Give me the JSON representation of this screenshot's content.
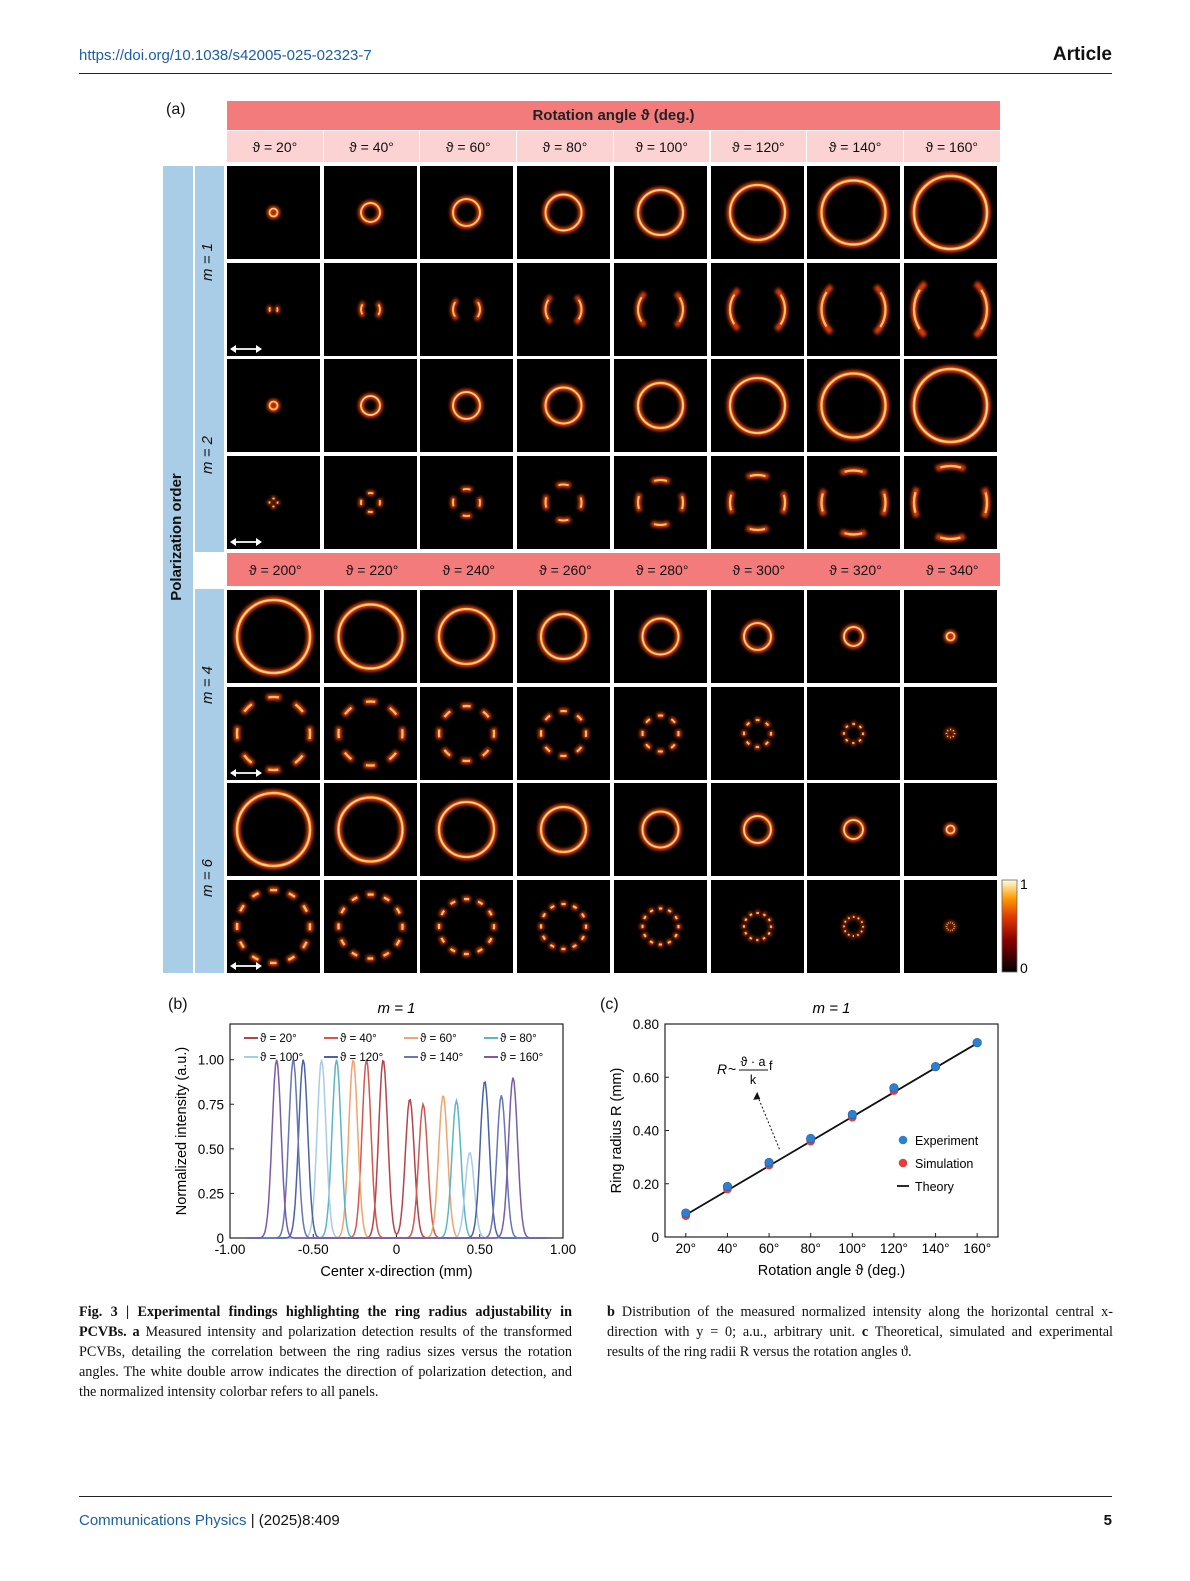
{
  "header": {
    "doi": "https://doi.org/10.1038/s42005-025-02323-7",
    "type": "Article"
  },
  "figure_a": {
    "label": "(a)",
    "banner": "Rotation angle ϑ (deg.)",
    "angles_top": [
      "ϑ = 20°",
      "ϑ = 40°",
      "ϑ = 60°",
      "ϑ = 80°",
      "ϑ = 100°",
      "ϑ = 120°",
      "ϑ = 140°",
      "ϑ = 160°"
    ],
    "angles_bottom": [
      "ϑ = 200°",
      "ϑ = 220°",
      "ϑ = 240°",
      "ϑ = 260°",
      "ϑ = 280°",
      "ϑ = 300°",
      "ϑ = 320°",
      "ϑ = 340°"
    ],
    "side_title": "Polarization order",
    "orders": [
      "m = 1",
      "m = 2",
      "m = 4",
      "m = 6"
    ],
    "order_values": [
      1,
      2,
      4,
      6
    ],
    "ring_sizes_top": [
      0.08,
      0.19,
      0.27,
      0.36,
      0.45,
      0.55,
      0.64,
      0.73
    ],
    "ring_sizes_bottom": [
      0.73,
      0.64,
      0.55,
      0.45,
      0.36,
      0.27,
      0.19,
      0.08
    ],
    "colorbar": {
      "max": "1",
      "min": "0"
    }
  },
  "figure_b": {
    "label": "(b)",
    "chart_data": {
      "type": "line",
      "title": "m = 1",
      "xlabel": "Center x-direction (mm)",
      "ylabel": "Normalized intensity (a.u.)",
      "xlim": [
        -1.0,
        1.0
      ],
      "ylim": [
        0,
        1.2
      ],
      "xticks": [
        "-1.00",
        "-0.50",
        "0",
        "0.50",
        "1.00"
      ],
      "xtick_values": [
        -1.0,
        -0.5,
        0,
        0.5,
        1.0
      ],
      "yticks": [
        "0",
        "0.25",
        "0.50",
        "0.75",
        "1.00"
      ],
      "ytick_values": [
        0,
        0.25,
        0.5,
        0.75,
        1.0
      ],
      "series": [
        {
          "name": "ϑ = 20°",
          "color": "#b5434a",
          "peaks": [
            [
              -0.08,
              1.0
            ],
            [
              0.08,
              0.78
            ]
          ]
        },
        {
          "name": "ϑ = 40°",
          "color": "#d0584e",
          "peaks": [
            [
              -0.18,
              1.0
            ],
            [
              0.16,
              0.75
            ]
          ]
        },
        {
          "name": "ϑ = 60°",
          "color": "#f0a470",
          "peaks": [
            [
              -0.26,
              1.0
            ],
            [
              0.28,
              0.8
            ]
          ]
        },
        {
          "name": "ϑ = 80°",
          "color": "#5bb5c8",
          "peaks": [
            [
              -0.36,
              1.0
            ],
            [
              0.36,
              0.77
            ]
          ]
        },
        {
          "name": "ϑ = 100°",
          "color": "#a9cce6",
          "peaks": [
            [
              -0.45,
              1.0
            ],
            [
              0.44,
              0.48
            ]
          ]
        },
        {
          "name": "ϑ = 120°",
          "color": "#4a62a8",
          "peaks": [
            [
              -0.56,
              1.0
            ],
            [
              0.53,
              0.88
            ]
          ]
        },
        {
          "name": "ϑ = 140°",
          "color": "#6876b4",
          "peaks": [
            [
              -0.62,
              1.0
            ],
            [
              0.63,
              0.8
            ]
          ]
        },
        {
          "name": "ϑ = 160°",
          "color": "#7b5ba8",
          "peaks": [
            [
              -0.72,
              1.0
            ],
            [
              0.7,
              0.9
            ]
          ]
        }
      ]
    }
  },
  "figure_c": {
    "label": "(c)",
    "chart_data": {
      "type": "scatter",
      "title": "m = 1",
      "xlabel": "Rotation angle ϑ (deg.)",
      "ylabel": "Ring radius R (mm)",
      "categories": [
        "20°",
        "40°",
        "60°",
        "80°",
        "100°",
        "120°",
        "140°",
        "160°"
      ],
      "x": [
        20,
        40,
        60,
        80,
        100,
        120,
        140,
        160
      ],
      "xlim": [
        10,
        170
      ],
      "ylim": [
        0,
        0.8
      ],
      "yticks": [
        "0",
        "0.20",
        "0.40",
        "0.60",
        "0.80"
      ],
      "ytick_values": [
        0,
        0.2,
        0.4,
        0.6,
        0.8
      ],
      "series": [
        {
          "name": "Experiment",
          "color": "#2e7fd1",
          "values": [
            0.09,
            0.19,
            0.28,
            0.37,
            0.46,
            0.56,
            0.64,
            0.73
          ]
        },
        {
          "name": "Simulation",
          "color": "#e04040",
          "values": [
            0.08,
            0.18,
            0.27,
            0.36,
            0.45,
            0.55,
            0.64,
            0.73
          ]
        },
        {
          "name": "Theory",
          "color": "#111111",
          "line": [
            [
              20,
              0.083
            ],
            [
              160,
              0.728
            ]
          ]
        }
      ],
      "annotation": {
        "lhs": "R",
        "sim": "~",
        "num": "ϑ · a",
        "den": "k",
        "tail": "f"
      }
    }
  },
  "caption": {
    "fig_label": "Fig. 3 | Experimental findings highlighting the ring radius adjustability in PCVBs.",
    "part_a_label": "a",
    "part_a_text": "Measured intensity and polarization detection results of the transformed PCVBs, detailing the correlation between the ring radius sizes versus the rotation angles. The white double arrow indicates the direction of polarization detection, and the normalized intensity colorbar refers to all panels.",
    "part_b_label": "b",
    "part_b_text": "Distribution of the measured normalized intensity along the horizontal central x-direction with y = 0; a.u., arbitrary unit.",
    "part_c_label": "c",
    "part_c_text": "Theoretical, simulated and experimental results of the ring radii R versus the rotation angles ϑ."
  },
  "footer": {
    "journal": "Communications Physics",
    "issue": "| (2025)8:409",
    "page": "5"
  }
}
